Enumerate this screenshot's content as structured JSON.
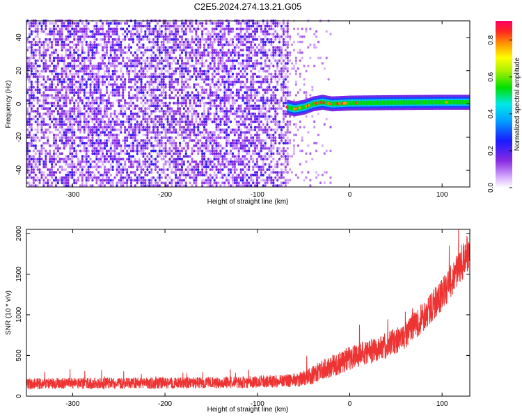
{
  "figure_title": "C2E5.2024.274.13.21.G05",
  "chart_data": [
    {
      "type": "heatmap",
      "panel": "spectrogram",
      "xlabel": "Height of straight line (km)",
      "ylabel": "Frequency (Hz)",
      "xlim": [
        -350,
        130
      ],
      "ylim": [
        -50,
        50
      ],
      "xticks": [
        -300,
        -200,
        -100,
        0,
        100
      ],
      "yticks": [
        -40,
        -20,
        0,
        20,
        40
      ],
      "colorbar": {
        "label": "Normalized spectral amplitude",
        "range": [
          0.0,
          0.85
        ],
        "ticks": [
          0.0,
          0.2,
          0.4,
          0.6,
          0.8
        ]
      },
      "regions": [
        {
          "x_range": [
            -350,
            -68
          ],
          "freq_range": [
            -50,
            50
          ],
          "amplitude": [
            0.02,
            0.08
          ],
          "description": "broadband noise"
        },
        {
          "x_range": [
            -68,
            -20
          ],
          "freq_range": [
            -50,
            50
          ],
          "amplitude": [
            0.0,
            0.02
          ],
          "description": "sparse transition"
        },
        {
          "x_range": [
            -68,
            130
          ],
          "freq_center": 0.5,
          "freq_halfwidth": 2.5,
          "amplitude": [
            0.35,
            0.85
          ],
          "description": "carrier line"
        }
      ],
      "line_center": [
        {
          "x": -68,
          "y": -2
        },
        {
          "x": -60,
          "y": -3
        },
        {
          "x": -50,
          "y": -2
        },
        {
          "x": -40,
          "y": 0
        },
        {
          "x": -30,
          "y": 1
        },
        {
          "x": -20,
          "y": 0
        },
        {
          "x": 0,
          "y": 0.5
        },
        {
          "x": 50,
          "y": 0.8
        },
        {
          "x": 100,
          "y": 1
        },
        {
          "x": 130,
          "y": 1
        }
      ]
    },
    {
      "type": "line",
      "panel": "snr",
      "xlabel": "Height of straight line (km)",
      "ylabel": "SNR (10 * v/v)",
      "xlim": [
        -350,
        130
      ],
      "ylim": [
        0,
        2050
      ],
      "xticks": [
        -300,
        -200,
        -100,
        0,
        100
      ],
      "yticks": [
        0,
        500,
        1000,
        1500,
        2000
      ],
      "series": [
        {
          "color": "#ee3333",
          "x": [
            -350,
            -300,
            -250,
            -200,
            -150,
            -100,
            -60,
            -45,
            -30,
            -10,
            0,
            20,
            40,
            60,
            80,
            100,
            110,
            120,
            130
          ],
          "y": [
            150,
            155,
            158,
            160,
            165,
            175,
            195,
            230,
            320,
            410,
            470,
            540,
            620,
            740,
            980,
            1250,
            1420,
            1620,
            1800
          ],
          "noise_amplitude": [
            100,
            100,
            100,
            100,
            100,
            110,
            120,
            150,
            180,
            200,
            210,
            220,
            230,
            240,
            260,
            280,
            300,
            320,
            340
          ]
        }
      ]
    }
  ]
}
